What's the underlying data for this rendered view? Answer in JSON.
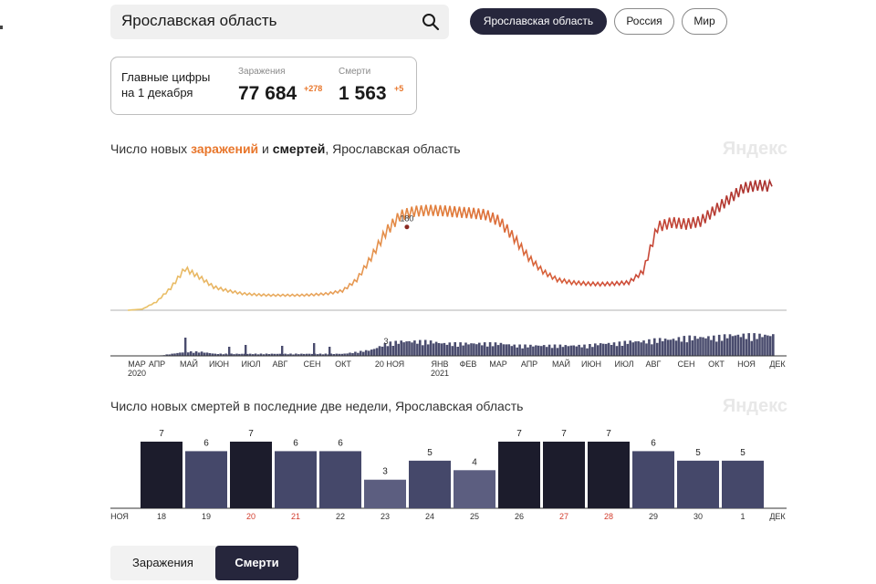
{
  "search": {
    "value": "Ярославская область"
  },
  "region_buttons": [
    "Ярославская область",
    "Россия",
    "Мир"
  ],
  "summary": {
    "title_line1": "Главные цифры",
    "title_line2": "на 1 декабря",
    "infections_label": "Заражения",
    "infections_value": "77 684",
    "infections_delta": "+278",
    "deaths_label": "Смерти",
    "deaths_value": "1 563",
    "deaths_delta": "+5"
  },
  "chart1": {
    "title_pre": "Число новых ",
    "title_hl1": "заражений",
    "title_mid": " и ",
    "title_hl2": "смертей",
    "title_post": ", Ярославская область",
    "watermark": "Яндекс"
  },
  "chart2": {
    "title": "Число новых смертей в последние две недели, Ярославская область",
    "watermark": "Яндекс"
  },
  "tabs": [
    "Заражения",
    "Смерти"
  ],
  "colors": {
    "active": "#26263c",
    "accent": "#e8762b",
    "bar_weekend": "#1c1c2c",
    "bar_weekday": "#45486a",
    "bar_light": "#5c5e80"
  },
  "chart_data": [
    {
      "type": "line",
      "series": [
        {
          "name": "заражений",
          "values_note": "daily new infections"
        }
      ],
      "x_ticks": [
        "МАР",
        "АПР",
        "МАЙ",
        "ИЮН",
        "ИЮЛ",
        "АВГ",
        "СЕН",
        "ОКТ",
        "НОЯ",
        "ЯНВ",
        "ФЕВ",
        "МАР",
        "АПР",
        "МАЙ",
        "ИЮН",
        "ИЮЛ",
        "АВГ",
        "СЕН",
        "ОКТ",
        "НОЯ",
        "ДЕК"
      ],
      "x_year_labels": [
        "2020",
        "2021"
      ],
      "x_special_label": "20 НОЯ",
      "infections_weekly": [
        0,
        2,
        15,
        40,
        75,
        60,
        42,
        35,
        30,
        28,
        27,
        27,
        27,
        28,
        30,
        35,
        55,
        95,
        140,
        170,
        178,
        180,
        179,
        177,
        175,
        172,
        160,
        130,
        95,
        70,
        55,
        50,
        48,
        47,
        48,
        50,
        70,
        150,
        158,
        155,
        160,
        180,
        200,
        220,
        225,
        223
      ],
      "annotations": [
        {
          "label": "180"
        },
        {
          "label": "3"
        }
      ],
      "deaths_panel": "daily new deaths"
    },
    {
      "type": "bar",
      "categories": [
        "18",
        "19",
        "20",
        "21",
        "22",
        "23",
        "24",
        "25",
        "26",
        "27",
        "28",
        "29",
        "30",
        "1"
      ],
      "values": [
        7,
        6,
        7,
        6,
        6,
        3,
        5,
        4,
        7,
        7,
        7,
        6,
        5,
        5
      ],
      "weekend_categories": [
        "20",
        "21",
        "27",
        "28"
      ],
      "edge_labels": [
        "НОЯ",
        "ДЕК"
      ]
    }
  ]
}
